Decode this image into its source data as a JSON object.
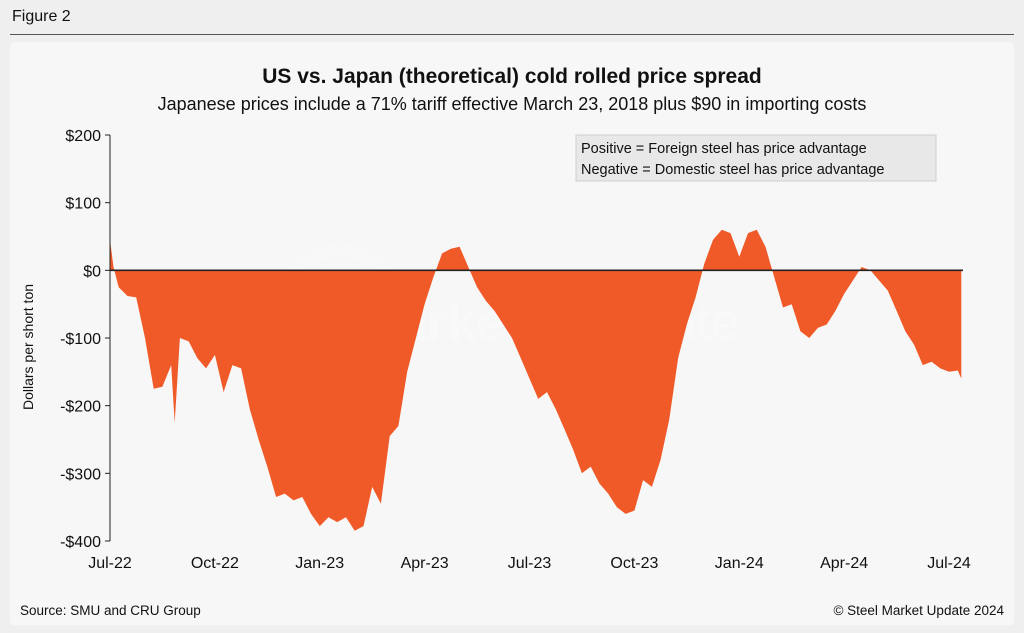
{
  "figure_label": "Figure 2",
  "footer": {
    "source": "Source: SMU and CRU Group",
    "copyright": "© Steel Market Update 2024"
  },
  "watermark": {
    "word1": "Steel Market",
    "word2": "Update"
  },
  "colors": {
    "fill": "#f05a28",
    "zero_line": "#222222",
    "axis": "#222222"
  },
  "chart_data": {
    "type": "area",
    "title": "US vs. Japan (theoretical) cold rolled price spread",
    "subtitle": "Japanese prices include a 71% tariff effective March 23, 2018 plus $90 in importing costs",
    "ylabel": "Dollars per short ton",
    "xlabel": "",
    "ylim": [
      -400,
      200
    ],
    "y_ticks": [
      200,
      100,
      0,
      -100,
      -200,
      -300,
      -400
    ],
    "y_tick_labels": [
      "$200",
      "$100",
      "$0",
      "-$100",
      "-$200",
      "-$300",
      "-$400"
    ],
    "x_range_months": [
      0,
      24.4
    ],
    "x_ticks": [
      0,
      3,
      6,
      9,
      12,
      15,
      18,
      21,
      24
    ],
    "x_tick_labels": [
      "Jul-22",
      "Oct-22",
      "Jan-23",
      "Apr-23",
      "Jul-23",
      "Oct-23",
      "Jan-24",
      "Apr-24",
      "Jul-24"
    ],
    "legend": [
      "Positive = Foreign steel has price advantage",
      "Negative = Domestic steel has price advantage"
    ],
    "legend_position": "top-right",
    "series": [
      {
        "name": "US vs. Japan cold rolled spread",
        "x": [
          0.0,
          0.1,
          0.25,
          0.5,
          0.75,
          1.0,
          1.25,
          1.5,
          1.75,
          1.85,
          2.0,
          2.25,
          2.5,
          2.75,
          3.0,
          3.25,
          3.5,
          3.75,
          4.0,
          4.25,
          4.5,
          4.75,
          5.0,
          5.25,
          5.5,
          5.75,
          6.0,
          6.25,
          6.5,
          6.75,
          7.0,
          7.25,
          7.5,
          7.75,
          8.0,
          8.25,
          8.5,
          8.75,
          9.0,
          9.25,
          9.5,
          9.75,
          10.0,
          10.25,
          10.5,
          10.75,
          11.0,
          11.25,
          11.5,
          11.75,
          12.0,
          12.25,
          12.5,
          12.75,
          13.0,
          13.25,
          13.5,
          13.75,
          14.0,
          14.25,
          14.5,
          14.75,
          15.0,
          15.25,
          15.5,
          15.75,
          16.0,
          16.25,
          16.5,
          16.75,
          17.0,
          17.25,
          17.5,
          17.75,
          18.0,
          18.25,
          18.5,
          18.75,
          19.0,
          19.25,
          19.5,
          19.75,
          20.0,
          20.25,
          20.5,
          20.75,
          21.0,
          21.25,
          21.5,
          21.75,
          22.0,
          22.25,
          22.5,
          22.75,
          23.0,
          23.25,
          23.5,
          23.75,
          24.0,
          24.25,
          24.35
        ],
        "y": [
          45,
          5,
          -25,
          -38,
          -40,
          -100,
          -175,
          -172,
          -140,
          -225,
          -100,
          -105,
          -130,
          -145,
          -125,
          -180,
          -140,
          -145,
          -205,
          -250,
          -290,
          -335,
          -330,
          -340,
          -335,
          -360,
          -378,
          -365,
          -372,
          -365,
          -385,
          -378,
          -320,
          -345,
          -245,
          -230,
          -150,
          -100,
          -50,
          -10,
          25,
          32,
          35,
          5,
          -25,
          -45,
          -60,
          -80,
          -100,
          -130,
          -160,
          -190,
          -180,
          -205,
          -235,
          -265,
          -300,
          -290,
          -315,
          -330,
          -350,
          -360,
          -355,
          -310,
          -320,
          -280,
          -220,
          -130,
          -80,
          -40,
          10,
          45,
          60,
          55,
          20,
          55,
          60,
          35,
          -10,
          -55,
          -50,
          -90,
          -100,
          -85,
          -80,
          -60,
          -35,
          -15,
          5,
          0,
          -15,
          -30,
          -60,
          -90,
          -110,
          -140,
          -135,
          -145,
          -150,
          -148,
          -160
        ]
      }
    ]
  }
}
